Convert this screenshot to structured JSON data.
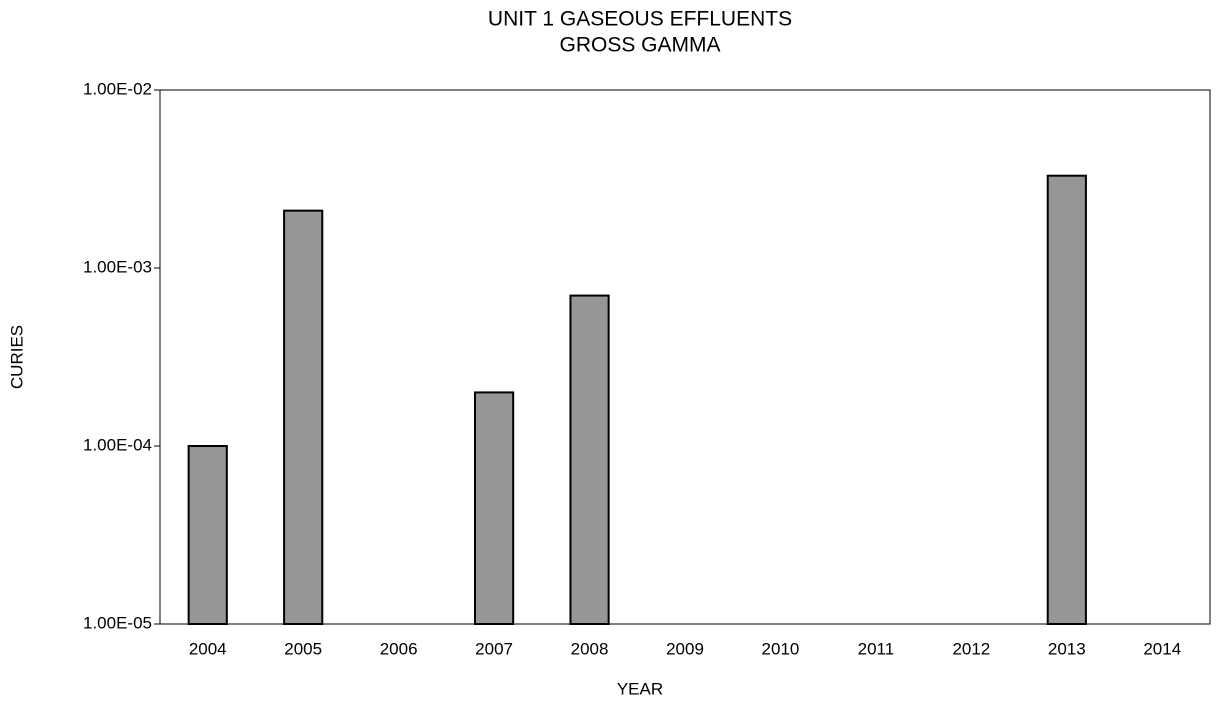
{
  "chart_data": {
    "type": "bar",
    "title": [
      "UNIT 1 GASEOUS EFFLUENTS",
      "GROSS GAMMA"
    ],
    "x_label": "YEAR",
    "y_label": "CURIES",
    "categories": [
      "2004",
      "2005",
      "2006",
      "2007",
      "2008",
      "2009",
      "2010",
      "2011",
      "2012",
      "2013",
      "2014"
    ],
    "values": [
      0.0001,
      0.0021,
      null,
      0.0002,
      0.0007,
      null,
      null,
      null,
      null,
      0.0033,
      null
    ],
    "color": "#969696",
    "edge_color": "#000000",
    "log_scale": true,
    "ylim": [
      1e-05,
      0.01
    ],
    "yticks": [
      {
        "value": 1e-05,
        "label": "1.00E-05"
      },
      {
        "value": 0.0001,
        "label": "1.00E-04"
      },
      {
        "value": 0.001,
        "label": "1.00E-03"
      },
      {
        "value": 0.01,
        "label": "1.00E-02"
      }
    ],
    "grid": false
  }
}
